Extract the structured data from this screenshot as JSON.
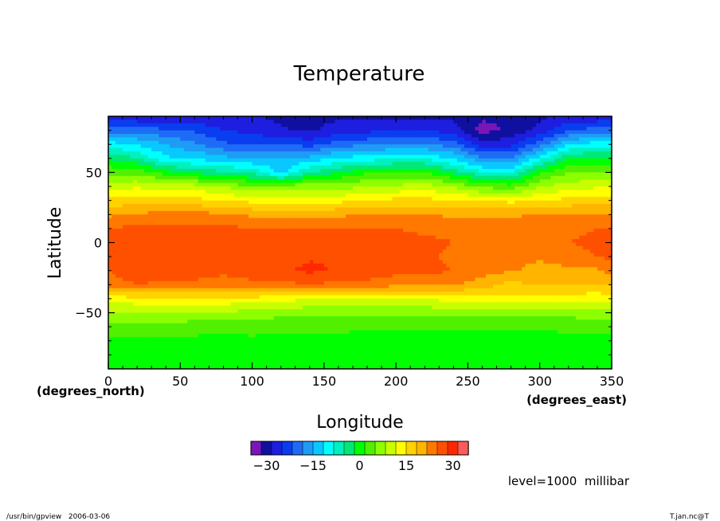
{
  "chart_data": {
    "type": "heatmap",
    "title": "Temperature",
    "xlabel": "Longitude",
    "ylabel": "Latitude",
    "x_unit_label": "(degrees_east)",
    "y_unit_label": "(degrees_north)",
    "xlim": [
      0,
      350
    ],
    "ylim": [
      -90,
      90
    ],
    "x_ticks": [
      "0",
      "50",
      "100",
      "150",
      "200",
      "250",
      "300",
      "350"
    ],
    "y_ticks": [
      "50",
      "0",
      "−50"
    ],
    "colorbar": {
      "levels": [
        -35,
        35
      ],
      "tick_labels": [
        "−30",
        "−15",
        "0",
        "15",
        "30"
      ],
      "tick_values": [
        -30,
        -15,
        0,
        15,
        30
      ],
      "colors": [
        "#7a16b8",
        "#1010a0",
        "#1e1ee0",
        "#0a3cf0",
        "#1e6cf5",
        "#1e9cf5",
        "#08c8ff",
        "#00ffff",
        "#00f0c0",
        "#00e878",
        "#00ff00",
        "#50f000",
        "#8cff00",
        "#c8ff00",
        "#ffff00",
        "#ffd200",
        "#ffb400",
        "#ff7800",
        "#ff5000",
        "#ff2800",
        "#ff5a5a"
      ]
    },
    "lat_grid": [
      90,
      80,
      70,
      60,
      50,
      40,
      30,
      20,
      10,
      0,
      -10,
      -20,
      -30,
      -40,
      -50,
      -60,
      -70,
      -80,
      -90
    ],
    "lon_grid": [
      0,
      20,
      40,
      60,
      80,
      100,
      120,
      140,
      160,
      180,
      200,
      220,
      240,
      260,
      280,
      300,
      320,
      340,
      350
    ],
    "values": [
      [
        -28,
        -28,
        -28,
        -28,
        -28,
        -28,
        -29,
        -29,
        -29,
        -29,
        -29,
        -29,
        -29,
        -31,
        -31,
        -29,
        -28,
        -28,
        -28
      ],
      [
        -20,
        -20,
        -21,
        -22,
        -25,
        -26,
        -28,
        -29,
        -27,
        -26,
        -25,
        -25,
        -27,
        -33,
        -31,
        -27,
        -22,
        -20,
        -20
      ],
      [
        -10,
        -12,
        -15,
        -18,
        -21,
        -22,
        -22,
        -23,
        -20,
        -19,
        -18,
        -18,
        -20,
        -27,
        -26,
        -20,
        -12,
        -10,
        -10
      ],
      [
        -2,
        -5,
        -11,
        -12,
        -14,
        -15,
        -14,
        -14,
        -11,
        -10,
        -9,
        -9,
        -12,
        -18,
        -18,
        -10,
        -2,
        -1,
        -1
      ],
      [
        4,
        4,
        0,
        -3,
        -4,
        -6,
        -13,
        -5,
        -2,
        1,
        2,
        2,
        -3,
        -8,
        -9,
        1,
        5,
        5,
        5
      ],
      [
        10,
        11,
        10,
        10,
        8,
        5,
        7,
        7,
        7,
        8,
        9,
        10,
        8,
        4,
        3,
        8,
        10,
        11,
        11
      ],
      [
        16,
        17,
        17,
        16,
        15,
        14,
        13,
        13,
        14,
        15,
        16,
        16,
        15,
        15,
        14,
        15,
        16,
        17,
        17
      ],
      [
        21,
        22,
        23,
        23,
        22,
        21,
        20,
        21,
        21,
        22,
        22,
        22,
        21,
        21,
        21,
        22,
        22,
        22,
        22
      ],
      [
        25,
        26,
        26,
        26,
        26,
        25,
        25,
        25,
        25,
        25,
        25,
        24,
        24,
        24,
        24,
        24,
        24,
        25,
        25
      ],
      [
        26,
        27,
        27,
        27,
        27,
        27,
        27,
        27,
        27,
        27,
        27,
        26,
        25,
        24,
        24,
        24,
        25,
        26,
        26
      ],
      [
        26,
        27,
        28,
        27,
        27,
        27,
        27,
        28,
        28,
        28,
        27,
        26,
        24,
        23,
        22,
        22,
        23,
        25,
        26
      ],
      [
        25,
        28,
        27,
        27,
        26,
        27,
        28,
        29,
        28,
        27,
        26,
        26,
        25,
        23,
        22,
        21,
        21,
        21,
        23
      ],
      [
        23,
        25,
        24,
        24,
        23,
        24,
        24,
        25,
        24,
        24,
        23,
        23,
        22,
        20,
        17,
        19,
        19,
        18,
        19
      ],
      [
        13,
        14,
        14,
        14,
        14,
        14,
        13,
        12,
        11,
        11,
        11,
        12,
        13,
        14,
        14,
        13,
        13,
        13,
        13
      ],
      [
        8,
        8,
        8,
        8,
        8,
        7,
        6,
        6,
        6,
        6,
        6,
        6,
        6,
        6,
        6,
        6,
        6,
        7,
        7
      ],
      [
        4,
        4,
        4,
        3,
        3,
        3,
        3,
        3,
        3,
        2,
        2,
        2,
        2,
        2,
        2,
        2,
        3,
        3,
        3
      ],
      [
        1,
        1,
        1,
        1,
        0,
        1,
        0,
        0,
        0,
        0,
        0,
        0,
        0,
        0,
        0,
        0,
        0,
        0,
        0
      ],
      [
        -1,
        -1,
        -1,
        -1,
        -1,
        -1,
        -1,
        -1,
        -1,
        -1,
        -1,
        -1,
        -1,
        -1,
        -1,
        -1,
        -1,
        -1,
        -1
      ],
      [
        -1,
        -1,
        -1,
        -1,
        -1,
        -1,
        -1,
        -1,
        -1,
        -1,
        -1,
        -1,
        -1,
        -1,
        -1,
        -1,
        -1,
        -1,
        -1
      ]
    ],
    "annotation": "level=1000  millibar"
  },
  "footer": {
    "left": "/usr/bin/gpview   2006-03-06",
    "right": "T.jan.nc@T"
  }
}
